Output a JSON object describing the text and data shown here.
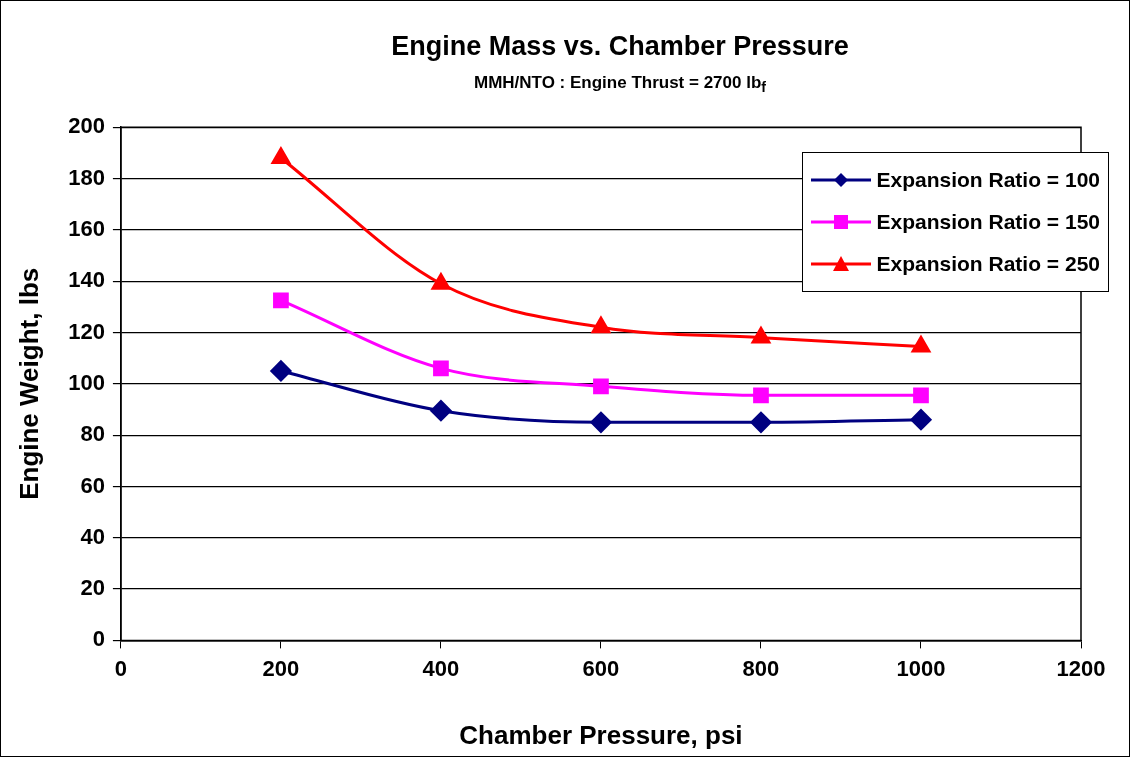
{
  "chart_data": {
    "type": "line",
    "title": "Engine Mass vs. Chamber Pressure",
    "subtitle": "MMH/NTO : Engine Thrust = 2700 lb$_{f}$",
    "xlabel": "Chamber Pressure, psi",
    "ylabel": "Engine Weight, lbs",
    "x": [
      200,
      400,
      600,
      800,
      1000
    ],
    "series": [
      {
        "name": "Expansion Ratio = 100",
        "color": "#000080",
        "marker": "diamond",
        "values": [
          105,
          89.5,
          85,
          85,
          86
        ]
      },
      {
        "name": "Expansion Ratio = 150",
        "color": "#ff00ff",
        "marker": "square",
        "values": [
          132.5,
          106,
          99,
          95.5,
          95.5
        ]
      },
      {
        "name": "Expansion Ratio = 250",
        "color": "#ff0000",
        "marker": "triangle",
        "values": [
          188,
          139,
          122,
          118,
          114.5
        ]
      }
    ],
    "xlim": [
      0,
      1200
    ],
    "xticks": [
      0,
      200,
      400,
      600,
      800,
      1000,
      1200
    ],
    "ylim": [
      0,
      200
    ],
    "yticks": [
      0,
      20,
      40,
      60,
      80,
      100,
      120,
      140,
      160,
      180,
      200
    ],
    "grid": "y",
    "legend": "top right"
  }
}
